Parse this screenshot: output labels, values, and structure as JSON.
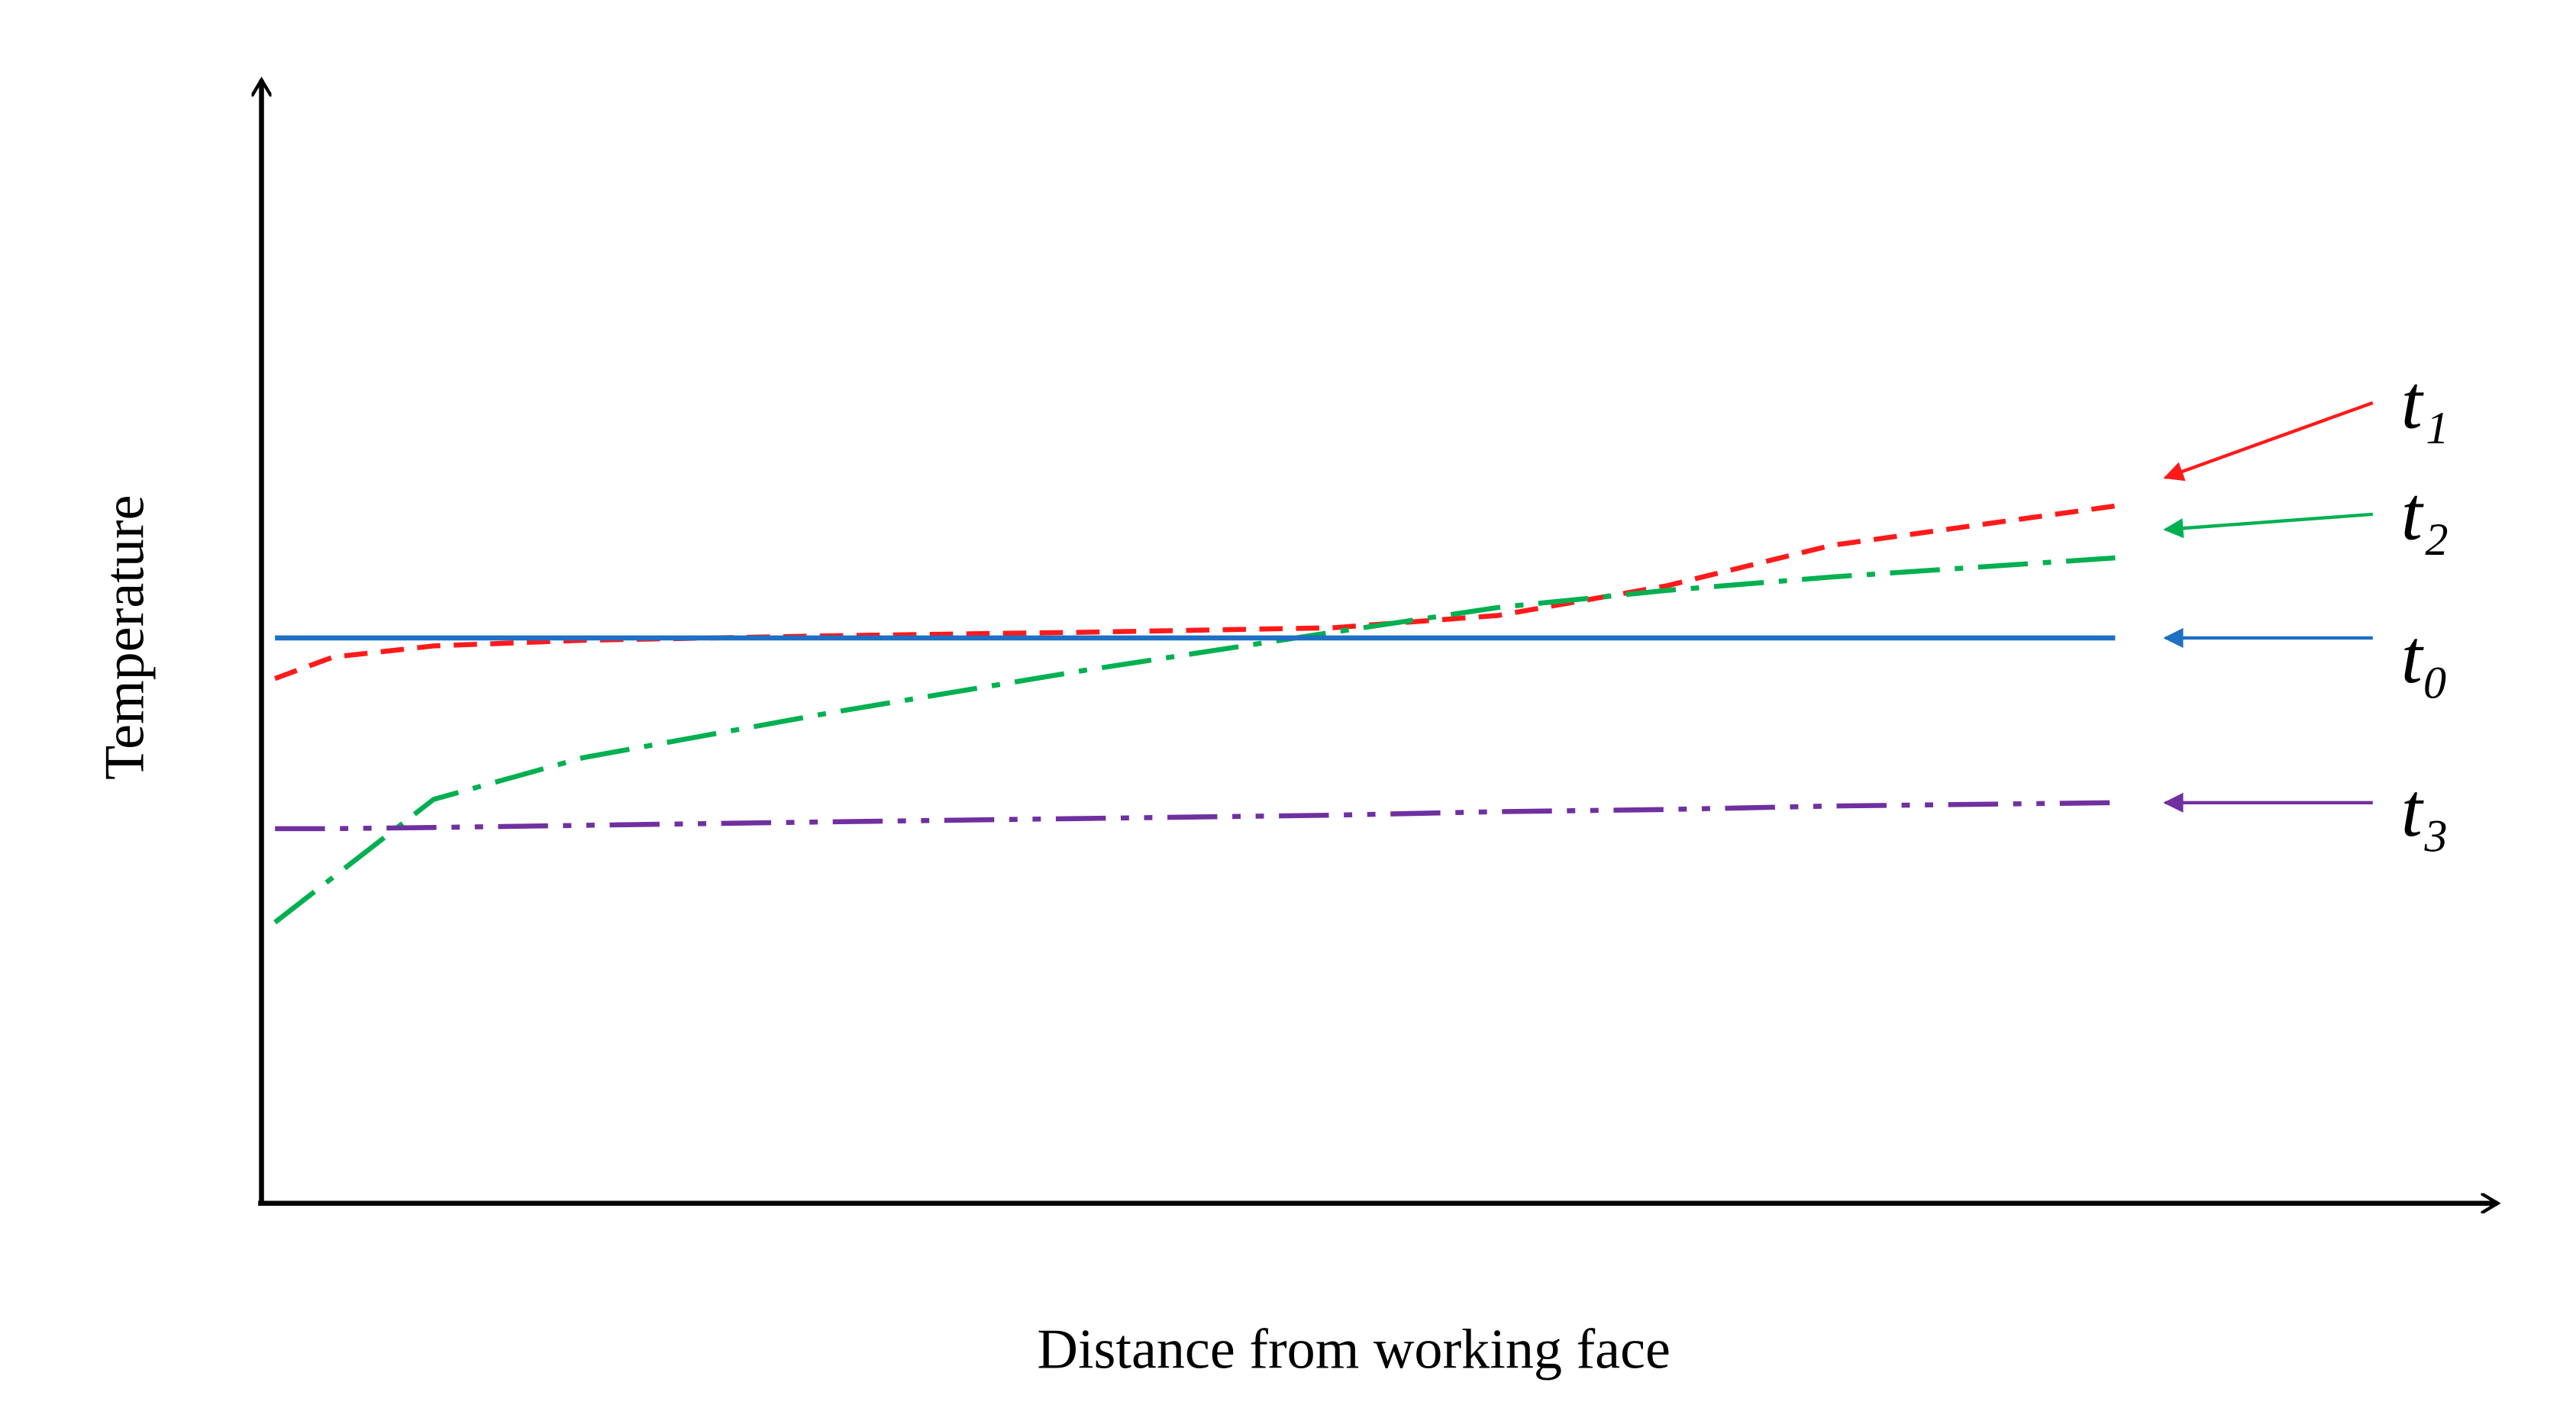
{
  "chart_data": {
    "type": "line",
    "xlabel": "Distance from working face",
    "ylabel": "Temperature",
    "x": [
      0.6,
      3.2,
      7.7,
      14.4,
      25.5,
      36.7,
      47.9,
      55.3,
      62.8,
      70.2,
      82.9
    ],
    "xlim": [
      0,
      100
    ],
    "ylim": [
      0,
      100
    ],
    "series": [
      {
        "name": "t₁",
        "color": "#ff1a1a",
        "linestyle": "dashed",
        "values": [
          46.5,
          48.4,
          49.4,
          49.9,
          50.3,
          50.6,
          51.0,
          52.1,
          54.7,
          58.3,
          61.8
        ]
      },
      {
        "name": "t₂",
        "color": "#00b050",
        "linestyle": "dashdot",
        "values": [
          24.9,
          28.9,
          35.8,
          39.5,
          43.5,
          47.2,
          50.6,
          52.8,
          54.3,
          55.5,
          57.2
        ]
      },
      {
        "name": "t₀",
        "color": "#1f6fc5",
        "linestyle": "solid",
        "values": [
          50.1,
          50.1,
          50.1,
          50.1,
          50.1,
          50.1,
          50.1,
          50.1,
          50.1,
          50.1,
          50.1
        ]
      },
      {
        "name": "t₃",
        "color": "#7030a0",
        "linestyle": "dashdotdot",
        "values": [
          33.2,
          33.2,
          33.3,
          33.5,
          33.8,
          34.1,
          34.4,
          34.7,
          34.9,
          35.2,
          35.5
        ]
      }
    ]
  }
}
